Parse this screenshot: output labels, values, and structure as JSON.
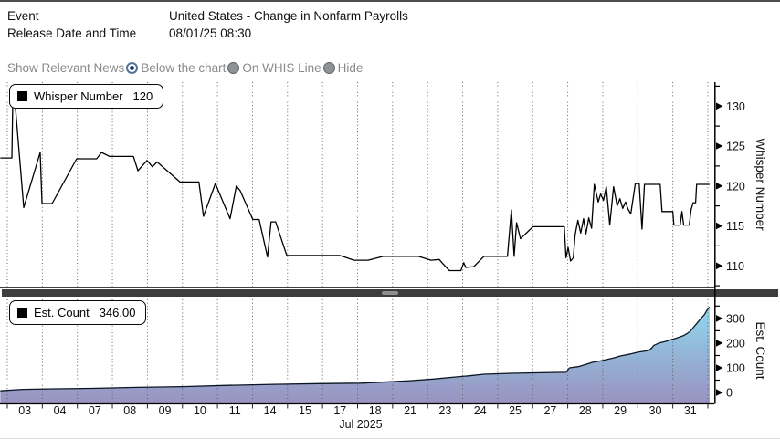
{
  "header": {
    "rows": [
      {
        "label": "Event",
        "value": "United States - Change in Nonfarm Payrolls"
      },
      {
        "label": "Release Date and Time",
        "value": "08/01/25 08:30"
      }
    ]
  },
  "news_control": {
    "label": "Show Relevant News",
    "options": [
      {
        "label": "Below the chart",
        "selected": true
      },
      {
        "label": "On WHIS Line",
        "selected": false
      },
      {
        "label": "Hide",
        "selected": false
      }
    ]
  },
  "xaxis": {
    "labels": [
      "03",
      "04",
      "07",
      "08",
      "09",
      "10",
      "11",
      "14",
      "15",
      "17",
      "18",
      "21",
      "23",
      "24",
      "25",
      "27",
      "28",
      "29",
      "30",
      "31"
    ],
    "title": "Jul 2025",
    "x_units": "gridline slot index 0-20, one slot per listed date"
  },
  "chart_data": [
    {
      "type": "line",
      "name": "whisper-number",
      "legend_label": "Whisper Number",
      "legend_value": "120",
      "ylabel": "Whisper Number",
      "yticks": [
        110,
        115,
        120,
        125,
        130
      ],
      "minor_ticks": [
        107.5,
        112.5,
        117.5,
        122.5,
        127.5,
        132.5
      ],
      "ylim": [
        107.4,
        133.0
      ],
      "grid": "vertical-dotted",
      "legend_position": "top-left",
      "series": [
        {
          "name": "Whisper Number",
          "points": [
            [
              -0.2,
              123.5
            ],
            [
              0.13,
              123.5
            ],
            [
              0.16,
              131.5
            ],
            [
              0.2,
              131.5
            ],
            [
              0.47,
              117.3
            ],
            [
              0.94,
              124.2
            ],
            [
              0.99,
              117.8
            ],
            [
              1.28,
              117.8
            ],
            [
              1.98,
              123.4
            ],
            [
              2.55,
              123.4
            ],
            [
              2.69,
              124.2
            ],
            [
              2.92,
              123.7
            ],
            [
              3.6,
              123.7
            ],
            [
              3.73,
              121.9
            ],
            [
              3.99,
              123.2
            ],
            [
              4.14,
              122.4
            ],
            [
              4.28,
              123.0
            ],
            [
              4.93,
              120.5
            ],
            [
              5.47,
              120.5
            ],
            [
              5.6,
              116.2
            ],
            [
              5.94,
              120.3
            ],
            [
              6.36,
              115.9
            ],
            [
              6.54,
              120.0
            ],
            [
              6.65,
              119.4
            ],
            [
              7.01,
              115.8
            ],
            [
              7.19,
              115.8
            ],
            [
              7.43,
              111.1
            ],
            [
              7.53,
              115.5
            ],
            [
              7.66,
              115.5
            ],
            [
              7.98,
              111.3
            ],
            [
              9.49,
              111.3
            ],
            [
              9.9,
              110.7
            ],
            [
              10.3,
              110.7
            ],
            [
              10.74,
              111.2
            ],
            [
              11.73,
              111.2
            ],
            [
              12.1,
              110.7
            ],
            [
              12.33,
              110.8
            ],
            [
              12.41,
              110.4
            ],
            [
              12.62,
              109.4
            ],
            [
              12.95,
              109.4
            ],
            [
              13.03,
              110.4
            ],
            [
              13.09,
              109.8
            ],
            [
              13.32,
              109.9
            ],
            [
              13.61,
              111.2
            ],
            [
              14.28,
              111.2
            ],
            [
              14.39,
              117.0
            ],
            [
              14.47,
              111.2
            ],
            [
              14.54,
              115.4
            ],
            [
              14.65,
              113.4
            ],
            [
              15.01,
              114.9
            ],
            [
              15.9,
              114.9
            ],
            [
              15.95,
              111.0
            ],
            [
              16.01,
              112.3
            ],
            [
              16.08,
              110.6
            ],
            [
              16.16,
              111.0
            ],
            [
              16.21,
              113.9
            ],
            [
              16.29,
              115.7
            ],
            [
              16.37,
              114.1
            ],
            [
              16.45,
              115.9
            ],
            [
              16.52,
              114.0
            ],
            [
              16.6,
              116.0
            ],
            [
              16.68,
              114.7
            ],
            [
              16.76,
              120.2
            ],
            [
              16.87,
              118.0
            ],
            [
              16.94,
              119.0
            ],
            [
              17.02,
              118.2
            ],
            [
              17.1,
              119.9
            ],
            [
              17.2,
              115.1
            ],
            [
              17.31,
              119.9
            ],
            [
              17.41,
              117.5
            ],
            [
              17.49,
              118.4
            ],
            [
              17.57,
              117.2
            ],
            [
              17.65,
              118.0
            ],
            [
              17.72,
              117.1
            ],
            [
              17.8,
              116.5
            ],
            [
              17.93,
              120.3
            ],
            [
              18.04,
              120.3
            ],
            [
              18.12,
              114.6
            ],
            [
              18.19,
              120.2
            ],
            [
              18.64,
              120.2
            ],
            [
              18.69,
              116.8
            ],
            [
              19.0,
              116.8
            ],
            [
              19.03,
              115.1
            ],
            [
              19.21,
              115.1
            ],
            [
              19.26,
              116.8
            ],
            [
              19.31,
              115.1
            ],
            [
              19.47,
              115.1
            ],
            [
              19.52,
              117.0
            ],
            [
              19.58,
              117.9
            ],
            [
              19.65,
              117.9
            ],
            [
              19.68,
              120.2
            ],
            [
              20.05,
              120.2
            ]
          ]
        }
      ]
    },
    {
      "type": "area",
      "name": "est-count",
      "legend_label": "Est. Count",
      "legend_value": "346.00",
      "ylabel": "Est. Count",
      "yticks": [
        0,
        100,
        200,
        300
      ],
      "minor_ticks": [
        50,
        150,
        250,
        350
      ],
      "ylim": [
        -44,
        377
      ],
      "grid": "vertical-dotted",
      "legend_position": "top-left",
      "fill_gradient": {
        "top": "#8fdeef",
        "mid": "#93b7d8",
        "bottom": "#9a92c0"
      },
      "series": [
        {
          "name": "Est. Count",
          "points": [
            [
              -0.2,
              7
            ],
            [
              0.44,
              13
            ],
            [
              1.36,
              15
            ],
            [
              2.4,
              17
            ],
            [
              3.7,
              21
            ],
            [
              5.0,
              24
            ],
            [
              6.3,
              29
            ],
            [
              7.6,
              33
            ],
            [
              8.9,
              36
            ],
            [
              10.1,
              38
            ],
            [
              10.7,
              42
            ],
            [
              11.5,
              48
            ],
            [
              12.2,
              55
            ],
            [
              12.8,
              63
            ],
            [
              13.2,
              68
            ],
            [
              13.6,
              74
            ],
            [
              14.0,
              76
            ],
            [
              14.4,
              78
            ],
            [
              15.2,
              80
            ],
            [
              15.95,
              82
            ],
            [
              16.05,
              100
            ],
            [
              16.3,
              105
            ],
            [
              16.5,
              113
            ],
            [
              16.7,
              122
            ],
            [
              17.0,
              130
            ],
            [
              17.3,
              140
            ],
            [
              17.5,
              148
            ],
            [
              17.8,
              156
            ],
            [
              18.0,
              163
            ],
            [
              18.3,
              170
            ],
            [
              18.4,
              180
            ],
            [
              18.45,
              190
            ],
            [
              18.6,
              200
            ],
            [
              18.8,
              207
            ],
            [
              18.95,
              214
            ],
            [
              19.1,
              220
            ],
            [
              19.3,
              230
            ],
            [
              19.4,
              238
            ],
            [
              19.5,
              248
            ],
            [
              19.6,
              266
            ],
            [
              19.7,
              282
            ],
            [
              19.8,
              300
            ],
            [
              19.9,
              315
            ],
            [
              19.97,
              332
            ],
            [
              20.05,
              346
            ]
          ]
        }
      ]
    }
  ],
  "colors": {
    "line": "#000000",
    "divider": "#3d3d3d",
    "top_border": "#4e4e4e",
    "muted_text": "#8a8a8a",
    "radio_selected_ring": "#54749c",
    "radio_selected_dot": "#1c3a6b",
    "radio_unselected": "#8f9296",
    "grid_dot": "#555555",
    "area_top": "#8fdeef",
    "area_bottom": "#9a92c0"
  }
}
